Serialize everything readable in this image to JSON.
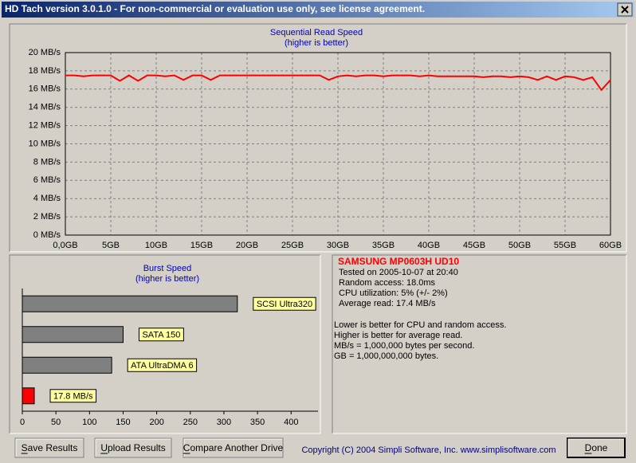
{
  "window": {
    "title": "HD Tach version 3.0.1.0  - For non-commercial or evaluation use only, see license agreement."
  },
  "chart_data": [
    {
      "type": "line",
      "title": "Sequential Read Speed",
      "subtitle": "(higher is better)",
      "x": [
        0,
        1,
        2,
        3,
        4,
        5,
        6,
        7,
        8,
        9,
        10,
        11,
        12,
        13,
        14,
        15,
        16,
        17,
        18,
        19,
        20,
        21,
        22,
        23,
        24,
        25,
        26,
        27,
        28,
        29,
        30,
        31,
        32,
        33,
        34,
        35,
        36,
        37,
        38,
        39,
        40,
        41,
        42,
        43,
        44,
        45,
        46,
        47,
        48,
        49,
        50,
        51,
        52,
        53,
        54,
        55,
        56,
        57,
        58,
        59,
        60
      ],
      "series": [
        {
          "color": "#ff0000",
          "values": [
            17.5,
            17.5,
            17.4,
            17.5,
            17.5,
            17.5,
            16.9,
            17.5,
            16.9,
            17.5,
            17.5,
            17.4,
            17.5,
            17.0,
            17.5,
            17.5,
            17.0,
            17.5,
            17.5,
            17.5,
            17.5,
            17.5,
            17.5,
            17.5,
            17.5,
            17.5,
            17.5,
            17.5,
            17.5,
            17.0,
            17.4,
            17.5,
            17.4,
            17.5,
            17.5,
            17.4,
            17.5,
            17.5,
            17.5,
            17.4,
            17.5,
            17.4,
            17.4,
            17.4,
            17.4,
            17.4,
            17.3,
            17.4,
            17.4,
            17.3,
            17.4,
            17.3,
            17.0,
            17.4,
            17.0,
            17.4,
            17.3,
            17.0,
            17.3,
            15.9,
            17.0
          ]
        }
      ],
      "xlim": [
        0,
        60
      ],
      "ylim": [
        0,
        20
      ],
      "xticks": [
        {
          "value": 0,
          "label": "0,0GB"
        },
        {
          "value": 5,
          "label": "5GB"
        },
        {
          "value": 10,
          "label": "10GB"
        },
        {
          "value": 15,
          "label": "15GB"
        },
        {
          "value": 20,
          "label": "20GB"
        },
        {
          "value": 25,
          "label": "25GB"
        },
        {
          "value": 30,
          "label": "30GB"
        },
        {
          "value": 35,
          "label": "35GB"
        },
        {
          "value": 40,
          "label": "40GB"
        },
        {
          "value": 45,
          "label": "45GB"
        },
        {
          "value": 50,
          "label": "50GB"
        },
        {
          "value": 55,
          "label": "55GB"
        },
        {
          "value": 60,
          "label": "60GB"
        }
      ],
      "yticks": [
        {
          "value": 0,
          "label": "0 MB/s"
        },
        {
          "value": 2,
          "label": "2 MB/s"
        },
        {
          "value": 4,
          "label": "4 MB/s"
        },
        {
          "value": 6,
          "label": "6 MB/s"
        },
        {
          "value": 8,
          "label": "8 MB/s"
        },
        {
          "value": 10,
          "label": "10 MB/s"
        },
        {
          "value": 12,
          "label": "12 MB/s"
        },
        {
          "value": 14,
          "label": "14 MB/s"
        },
        {
          "value": 16,
          "label": "16 MB/s"
        },
        {
          "value": 18,
          "label": "18 MB/s"
        },
        {
          "value": 20,
          "label": "20 MB/s"
        }
      ],
      "grid": true
    },
    {
      "type": "hbar",
      "title": "Burst Speed",
      "subtitle": "(higher is better)",
      "categories": [
        "SCSI Ultra320",
        "SATA 150",
        "ATA UltraDMA 6",
        null
      ],
      "values": [
        320,
        150,
        133,
        17.8
      ],
      "value_labels": [
        null,
        null,
        null,
        "17.8 MB/s"
      ],
      "colors": [
        "#808080",
        "#808080",
        "#808080",
        "#ff0000"
      ],
      "xlim": [
        0,
        440
      ],
      "xticks": [
        0,
        50,
        100,
        150,
        200,
        250,
        300,
        350,
        400
      ]
    }
  ],
  "info": {
    "drive": "SAMSUNG MP0603H UD10",
    "lines": [
      "Tested on 2005-10-07 at 20:40",
      "Random access: 18.0ms",
      "CPU utilization: 5% (+/- 2%)",
      "Average read: 17.4 MB/s"
    ],
    "notes": [
      "Lower is better for CPU and random access.",
      "Higher is better for average read.",
      "MB/s = 1,000,000 bytes per second.",
      "GB = 1,000,000,000 bytes."
    ]
  },
  "buttons": [
    "Save Results",
    "Upload Results",
    "Compare Another Drive",
    "Done"
  ],
  "copyright": "Copyright (C) 2004 Simpli Software, Inc. www.simplisoftware.com"
}
